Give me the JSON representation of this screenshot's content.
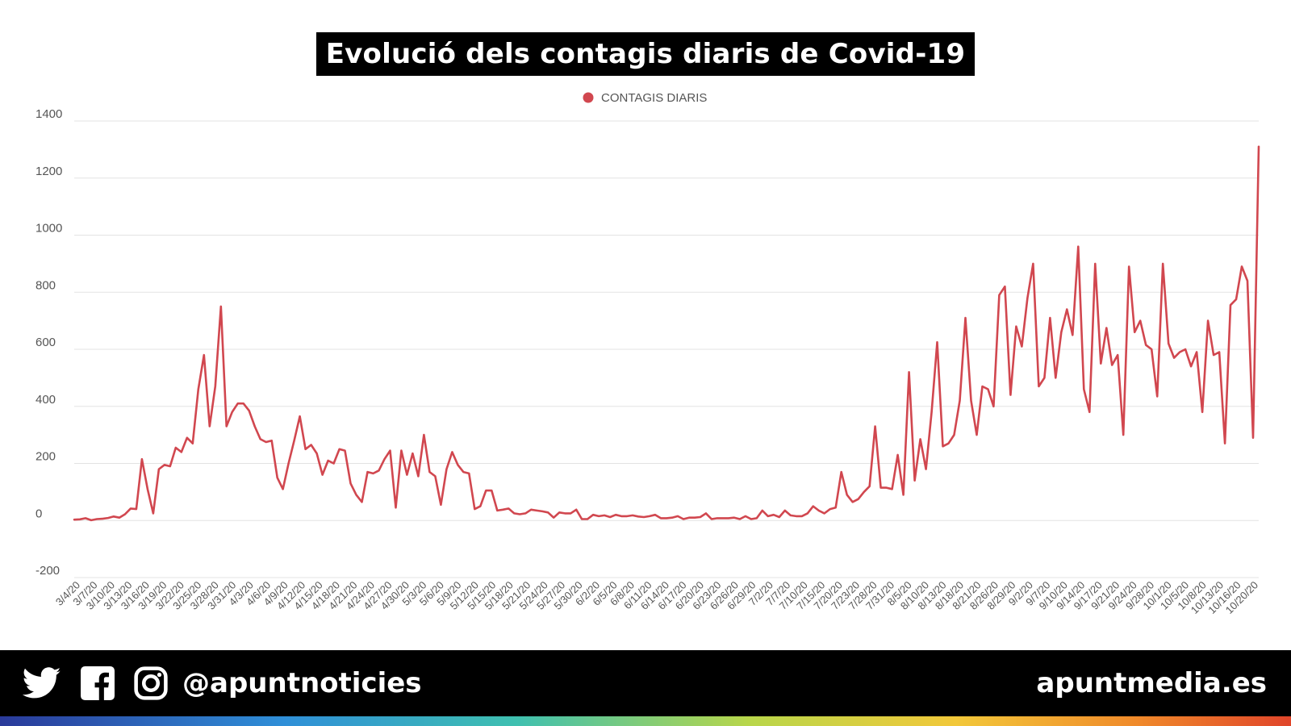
{
  "title": "Evolució dels contagis diaris de Covid-19",
  "footer": {
    "handle": "@apuntnoticies",
    "site": "apuntmedia.es",
    "icons": [
      "twitter-icon",
      "facebook-icon",
      "instagram-icon"
    ]
  },
  "chart_data": {
    "type": "line",
    "legend": {
      "label": "CONTAGIS DIARIS",
      "position": "top-center",
      "color": "#d1474f"
    },
    "ylim": [
      -200,
      1400
    ],
    "yticks": [
      -200,
      0,
      200,
      400,
      600,
      800,
      1000,
      1200,
      1400
    ],
    "grid": true,
    "x_tick_labels": [
      "3/4/20",
      "3/7/20",
      "3/10/20",
      "3/13/20",
      "3/16/20",
      "3/19/20",
      "3/22/20",
      "3/25/20",
      "3/28/20",
      "3/31/20",
      "4/3/20",
      "4/6/20",
      "4/9/20",
      "4/12/20",
      "4/15/20",
      "4/18/20",
      "4/21/20",
      "4/24/20",
      "4/27/20",
      "4/30/20",
      "5/3/20",
      "5/6/20",
      "5/9/20",
      "5/12/20",
      "5/15/20",
      "5/18/20",
      "5/21/20",
      "5/24/20",
      "5/27/20",
      "5/30/20",
      "6/2/20",
      "6/5/20",
      "6/8/20",
      "6/11/20",
      "6/14/20",
      "6/17/20",
      "6/20/20",
      "6/23/20",
      "6/26/20",
      "6/29/20",
      "7/2/20",
      "7/7/20",
      "7/10/20",
      "7/15/20",
      "7/20/20",
      "7/23/20",
      "7/28/20",
      "7/31/20",
      "8/5/20",
      "8/10/20",
      "8/13/20",
      "8/18/20",
      "8/21/20",
      "8/26/20",
      "8/29/20",
      "9/2/20",
      "9/7/20",
      "9/10/20",
      "9/14/20",
      "9/17/20",
      "9/21/20",
      "9/24/20",
      "9/28/20",
      "10/1/20",
      "10/5/20",
      "10/8/20",
      "10/13/20",
      "10/16/20",
      "10/20/20"
    ],
    "series": [
      {
        "name": "CONTAGIS DIARIS",
        "color": "#d1474f",
        "values": [
          3,
          4,
          8,
          1,
          5,
          6,
          9,
          14,
          10,
          22,
          42,
          40,
          215,
          110,
          25,
          180,
          195,
          190,
          255,
          240,
          290,
          270,
          460,
          580,
          330,
          470,
          750,
          330,
          380,
          410,
          410,
          385,
          330,
          285,
          275,
          280,
          150,
          110,
          200,
          280,
          365,
          250,
          265,
          235,
          160,
          210,
          200,
          250,
          245,
          130,
          90,
          65,
          170,
          165,
          175,
          215,
          245,
          45,
          245,
          160,
          235,
          155,
          300,
          170,
          155,
          55,
          180,
          240,
          195,
          170,
          165,
          40,
          50,
          105,
          105,
          35,
          38,
          42,
          25,
          22,
          25,
          38,
          35,
          32,
          28,
          10,
          28,
          25,
          25,
          38,
          5,
          5,
          20,
          15,
          18,
          12,
          20,
          15,
          15,
          18,
          14,
          12,
          15,
          20,
          8,
          8,
          10,
          15,
          5,
          10,
          10,
          12,
          25,
          5,
          8,
          8,
          8,
          10,
          5,
          15,
          5,
          8,
          35,
          15,
          20,
          12,
          35,
          18,
          15,
          15,
          25,
          50,
          35,
          25,
          40,
          45,
          170,
          90,
          65,
          75,
          100,
          120,
          330,
          115,
          115,
          110,
          230,
          90,
          520,
          140,
          285,
          180,
          380,
          625,
          260,
          270,
          300,
          420,
          710,
          420,
          300,
          470,
          460,
          400,
          790,
          820,
          440,
          680,
          610,
          780,
          900,
          470,
          500,
          710,
          500,
          660,
          740,
          650,
          960,
          460,
          380,
          900,
          550,
          675,
          545,
          580,
          300,
          890,
          660,
          700,
          615,
          600,
          435,
          900,
          620,
          570,
          590,
          600,
          540,
          590,
          380,
          700,
          580,
          590,
          270,
          755,
          775,
          890,
          840,
          290,
          1310
        ]
      }
    ]
  }
}
